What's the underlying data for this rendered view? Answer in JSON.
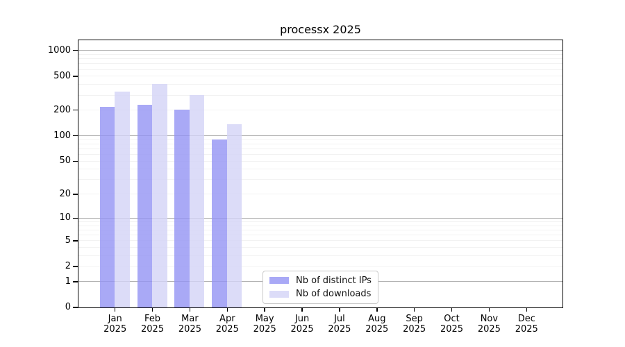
{
  "title": "processx 2025",
  "chart_data": {
    "type": "bar",
    "title": "processx 2025",
    "categories": [
      "Jan 2025",
      "Feb 2025",
      "Mar 2025",
      "Apr 2025",
      "May 2025",
      "Jun 2025",
      "Jul 2025",
      "Aug 2025",
      "Sep 2025",
      "Oct 2025",
      "Nov 2025",
      "Dec 2025"
    ],
    "month_labels": [
      "Jan",
      "Feb",
      "Mar",
      "Apr",
      "May",
      "Jun",
      "Jul",
      "Aug",
      "Sep",
      "Oct",
      "Nov",
      "Dec"
    ],
    "year_label": "2025",
    "series": [
      {
        "name": "Nb of distinct IPs",
        "color": "#9494f4",
        "opacity": 0.8,
        "values": [
          215,
          230,
          200,
          90,
          null,
          null,
          null,
          null,
          null,
          null,
          null,
          null
        ]
      },
      {
        "name": "Nb of downloads",
        "color": "#d3d3f6",
        "opacity": 0.8,
        "values": [
          325,
          405,
          300,
          135,
          null,
          null,
          null,
          null,
          null,
          null,
          null,
          null
        ]
      }
    ],
    "y_axis": {
      "scale": "log10(1+x)",
      "tick_labels": [
        0,
        1,
        2,
        5,
        10,
        20,
        50,
        100,
        200,
        500,
        1000
      ],
      "ylim": [
        0,
        1000
      ],
      "major_grid_at": [
        1,
        10,
        100,
        1000
      ]
    },
    "grid": {
      "on": true,
      "major_color": "#b0b0b0",
      "minor_color": "#e7e7e7"
    },
    "legend": {
      "position": "lower-center"
    }
  }
}
